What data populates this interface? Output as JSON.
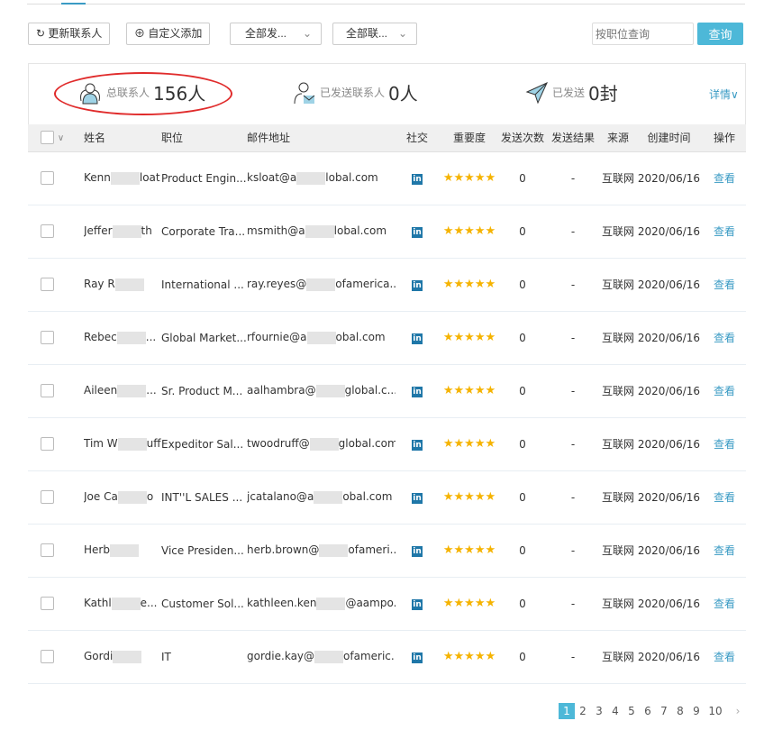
{
  "toolbar": {
    "refresh": "更新联系人",
    "custom_add": "自定义添加",
    "filter_send": "全部发...",
    "filter_contact": "全部联...",
    "search_placeholder": "按职位查询",
    "search_btn": "查询"
  },
  "stats": {
    "total_label": "总联系人",
    "total_value": "156人",
    "sent_contacts_label": "已发送联系人",
    "sent_contacts_value": "0人",
    "sent_label": "已发送",
    "sent_value": "0封",
    "detail": "详情∨"
  },
  "accent": "#4db8d8",
  "table": {
    "headers": [
      "姓名",
      "职位",
      "邮件地址",
      "社交",
      "重要度",
      "发送次数",
      "发送结果",
      "来源",
      "创建时间",
      "操作"
    ],
    "rows": [
      {
        "name_a": "Kenn",
        "name_b": "loat",
        "position": "Product Engin...",
        "email_a": "ksloat@a",
        "email_b": "lobal.com",
        "social": "in",
        "stars": "★★★★★",
        "count": "0",
        "result": "-",
        "source": "互联网",
        "date": "2020/06/16",
        "action": "查看"
      },
      {
        "name_a": "Jeffer",
        "name_b": "th",
        "position": "Corporate Tra...",
        "email_a": "msmith@a",
        "email_b": "lobal.com",
        "social": "in",
        "stars": "★★★★★",
        "count": "0",
        "result": "-",
        "source": "互联网",
        "date": "2020/06/16",
        "action": "查看"
      },
      {
        "name_a": "Ray R",
        "name_b": "",
        "position": "International ...",
        "email_a": "ray.reyes@",
        "email_b": "ofamerica...",
        "social": "in",
        "stars": "★★★★★",
        "count": "0",
        "result": "-",
        "source": "互联网",
        "date": "2020/06/16",
        "action": "查看"
      },
      {
        "name_a": "Rebec",
        "name_b": "...",
        "position": "Global Market...",
        "email_a": "rfournie@a",
        "email_b": "obal.com",
        "social": "in",
        "stars": "★★★★★",
        "count": "0",
        "result": "-",
        "source": "互联网",
        "date": "2020/06/16",
        "action": "查看"
      },
      {
        "name_a": "Aileen",
        "name_b": "...",
        "position": "Sr. Product M...",
        "email_a": "aalhambra@",
        "email_b": "global.c...",
        "social": "in",
        "stars": "★★★★★",
        "count": "0",
        "result": "-",
        "source": "互联网",
        "date": "2020/06/16",
        "action": "查看"
      },
      {
        "name_a": "Tim W",
        "name_b": "uff",
        "position": "Expeditor Sal...",
        "email_a": "twoodruff@",
        "email_b": "global.com",
        "social": "in",
        "stars": "★★★★★",
        "count": "0",
        "result": "-",
        "source": "互联网",
        "date": "2020/06/16",
        "action": "查看"
      },
      {
        "name_a": "Joe Ca",
        "name_b": "o",
        "position": "INT''L SALES ...",
        "email_a": "jcatalano@a",
        "email_b": "obal.com",
        "social": "in",
        "stars": "★★★★★",
        "count": "0",
        "result": "-",
        "source": "互联网",
        "date": "2020/06/16",
        "action": "查看"
      },
      {
        "name_a": "Herb",
        "name_b": "",
        "position": "Vice Presiden...",
        "email_a": "herb.brown@",
        "email_b": "ofameri...",
        "social": "in",
        "stars": "★★★★★",
        "count": "0",
        "result": "-",
        "source": "互联网",
        "date": "2020/06/16",
        "action": "查看"
      },
      {
        "name_a": "Kathl",
        "name_b": "e...",
        "position": "Customer Sol...",
        "email_a": "kathleen.ken",
        "email_b": "@aampo...",
        "social": "in",
        "stars": "★★★★★",
        "count": "0",
        "result": "-",
        "source": "互联网",
        "date": "2020/06/16",
        "action": "查看"
      },
      {
        "name_a": "Gordi",
        "name_b": "",
        "position": "IT",
        "email_a": "gordie.kay@",
        "email_b": "ofameric...",
        "social": "in",
        "stars": "★★★★★",
        "count": "0",
        "result": "-",
        "source": "互联网",
        "date": "2020/06/16",
        "action": "查看"
      }
    ]
  },
  "pagination": {
    "pages": [
      "1",
      "2",
      "3",
      "4",
      "5",
      "6",
      "7",
      "8",
      "9",
      "10"
    ],
    "current": "1",
    "next": "›"
  }
}
